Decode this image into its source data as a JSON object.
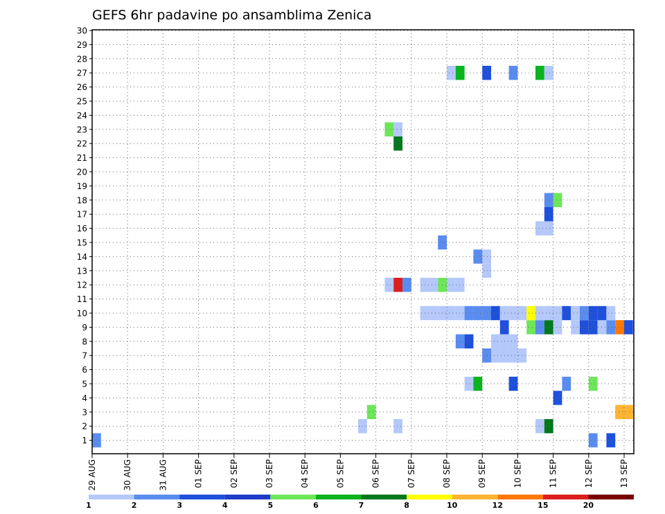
{
  "chart_data": {
    "type": "heatmap",
    "title": "GEFS 6hr padavine po ansamblima Zenica",
    "x_tick_labels": [
      "29 AUG",
      "30 AUG",
      "31 AUG",
      "01 SEP",
      "02 SEP",
      "03 SEP",
      "04 SEP",
      "05 SEP",
      "06 SEP",
      "07 SEP",
      "08 SEP",
      "09 SEP",
      "10 SEP",
      "11 SEP",
      "12 SEP",
      "13 SEP"
    ],
    "y_tick_labels": [
      "1",
      "2",
      "3",
      "4",
      "5",
      "6",
      "7",
      "8",
      "9",
      "10",
      "11",
      "12",
      "13",
      "14",
      "15",
      "16",
      "17",
      "18",
      "19",
      "20",
      "21",
      "22",
      "23",
      "24",
      "25",
      "26",
      "27",
      "28",
      "29",
      "30"
    ],
    "ylim": [
      0,
      30
    ],
    "x_steps_per_day": 4,
    "x_step_count": 61,
    "grid": true,
    "legend": {
      "position": "bottom",
      "labels": [
        "1",
        "2",
        "3",
        "4",
        "5",
        "6",
        "7",
        "8",
        "10",
        "12",
        "15",
        "20"
      ],
      "colors": [
        "#b4c8fa",
        "#5a8cf0",
        "#1e50dc",
        "#1e3cc8",
        "#6ee65a",
        "#0ab41e",
        "#00781e",
        "#ffff00",
        "#ffb432",
        "#ff7800",
        "#dc1e1e",
        "#780000"
      ]
    },
    "colors": {
      "c1": "#b4c8fa",
      "c2": "#5a8cf0",
      "c3": "#1e50dc",
      "c5": "#6ee65a",
      "c6": "#0ab41e",
      "c7": "#00781e",
      "c8": "#ffff00",
      "c10": "#ffb432",
      "c12": "#ff7800",
      "c15": "#dc1e1e",
      "c20": "#780000"
    },
    "cells": [
      [
        0,
        1,
        "c2"
      ],
      [
        58,
        1,
        "c3"
      ],
      [
        56,
        1,
        "c2"
      ],
      [
        30,
        2,
        "c1"
      ],
      [
        34,
        2,
        "c1"
      ],
      [
        50,
        2,
        "c1"
      ],
      [
        51,
        2,
        "c7"
      ],
      [
        31,
        3,
        "c5"
      ],
      [
        60,
        3,
        "c10"
      ],
      [
        59,
        3,
        "c10"
      ],
      [
        52,
        4,
        "c3"
      ],
      [
        42,
        5,
        "c1"
      ],
      [
        43,
        5,
        "c6"
      ],
      [
        47,
        5,
        "c3"
      ],
      [
        53,
        5,
        "c2"
      ],
      [
        56,
        5,
        "c5"
      ],
      [
        45,
        7,
        "c1"
      ],
      [
        46,
        7,
        "c1"
      ],
      [
        47,
        7,
        "c1"
      ],
      [
        48,
        7,
        "c1"
      ],
      [
        44,
        7,
        "c2"
      ],
      [
        45,
        8,
        "c1"
      ],
      [
        46,
        8,
        "c1"
      ],
      [
        47,
        8,
        "c1"
      ],
      [
        41,
        8,
        "c2"
      ],
      [
        42,
        8,
        "c3"
      ],
      [
        46,
        9,
        "c3"
      ],
      [
        49,
        9,
        "c5"
      ],
      [
        50,
        9,
        "c2"
      ],
      [
        51,
        9,
        "c7"
      ],
      [
        52,
        9,
        "c1"
      ],
      [
        54,
        9,
        "c1"
      ],
      [
        55,
        9,
        "c3"
      ],
      [
        56,
        9,
        "c3"
      ],
      [
        57,
        9,
        "c1"
      ],
      [
        58,
        9,
        "c2"
      ],
      [
        59,
        9,
        "c12"
      ],
      [
        60,
        9,
        "c3"
      ],
      [
        37,
        10,
        "c1"
      ],
      [
        38,
        10,
        "c1"
      ],
      [
        39,
        10,
        "c1"
      ],
      [
        40,
        10,
        "c1"
      ],
      [
        41,
        10,
        "c1"
      ],
      [
        42,
        10,
        "c2"
      ],
      [
        43,
        10,
        "c2"
      ],
      [
        44,
        10,
        "c2"
      ],
      [
        45,
        10,
        "c3"
      ],
      [
        46,
        10,
        "c1"
      ],
      [
        47,
        10,
        "c1"
      ],
      [
        48,
        10,
        "c1"
      ],
      [
        49,
        10,
        "c8"
      ],
      [
        50,
        10,
        "c1"
      ],
      [
        51,
        10,
        "c1"
      ],
      [
        52,
        10,
        "c1"
      ],
      [
        53,
        10,
        "c3"
      ],
      [
        54,
        10,
        "c1"
      ],
      [
        55,
        10,
        "c2"
      ],
      [
        56,
        10,
        "c3"
      ],
      [
        57,
        10,
        "c3"
      ],
      [
        58,
        10,
        "c1"
      ],
      [
        33,
        12,
        "c1"
      ],
      [
        34,
        12,
        "c15"
      ],
      [
        35,
        12,
        "c2"
      ],
      [
        37,
        12,
        "c1"
      ],
      [
        38,
        12,
        "c1"
      ],
      [
        39,
        12,
        "c5"
      ],
      [
        40,
        12,
        "c1"
      ],
      [
        41,
        12,
        "c1"
      ],
      [
        44,
        13,
        "c1"
      ],
      [
        44,
        14,
        "c1"
      ],
      [
        43,
        14,
        "c2"
      ],
      [
        39,
        15,
        "c2"
      ],
      [
        50,
        16,
        "c1"
      ],
      [
        51,
        16,
        "c1"
      ],
      [
        51,
        17,
        "c3"
      ],
      [
        51,
        18,
        "c2"
      ],
      [
        52,
        18,
        "c5"
      ],
      [
        34,
        22,
        "c7"
      ],
      [
        33,
        23,
        "c5"
      ],
      [
        34,
        23,
        "c1"
      ],
      [
        40,
        27,
        "c1"
      ],
      [
        41,
        27,
        "c6"
      ],
      [
        44,
        27,
        "c3"
      ],
      [
        47,
        27,
        "c2"
      ],
      [
        50,
        27,
        "c6"
      ],
      [
        51,
        27,
        "c1"
      ]
    ]
  }
}
